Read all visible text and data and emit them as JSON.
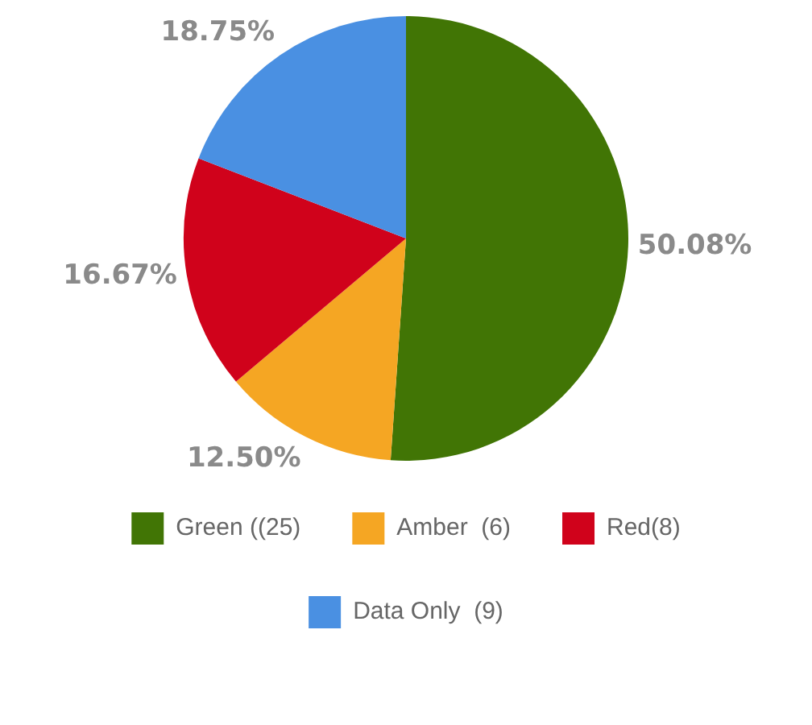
{
  "chart_data": {
    "type": "pie",
    "categories": [
      "Green ((25)",
      "Amber  (6)",
      "Red(8)",
      "Data Only  (9)"
    ],
    "values": [
      50.08,
      12.5,
      16.67,
      18.75
    ],
    "value_labels": [
      "50.08%",
      "12.50%",
      "16.67%",
      "18.75%"
    ],
    "colors": [
      "#417505",
      "#f5a623",
      "#d0021b",
      "#4a90e2"
    ],
    "legend": "bottom"
  }
}
